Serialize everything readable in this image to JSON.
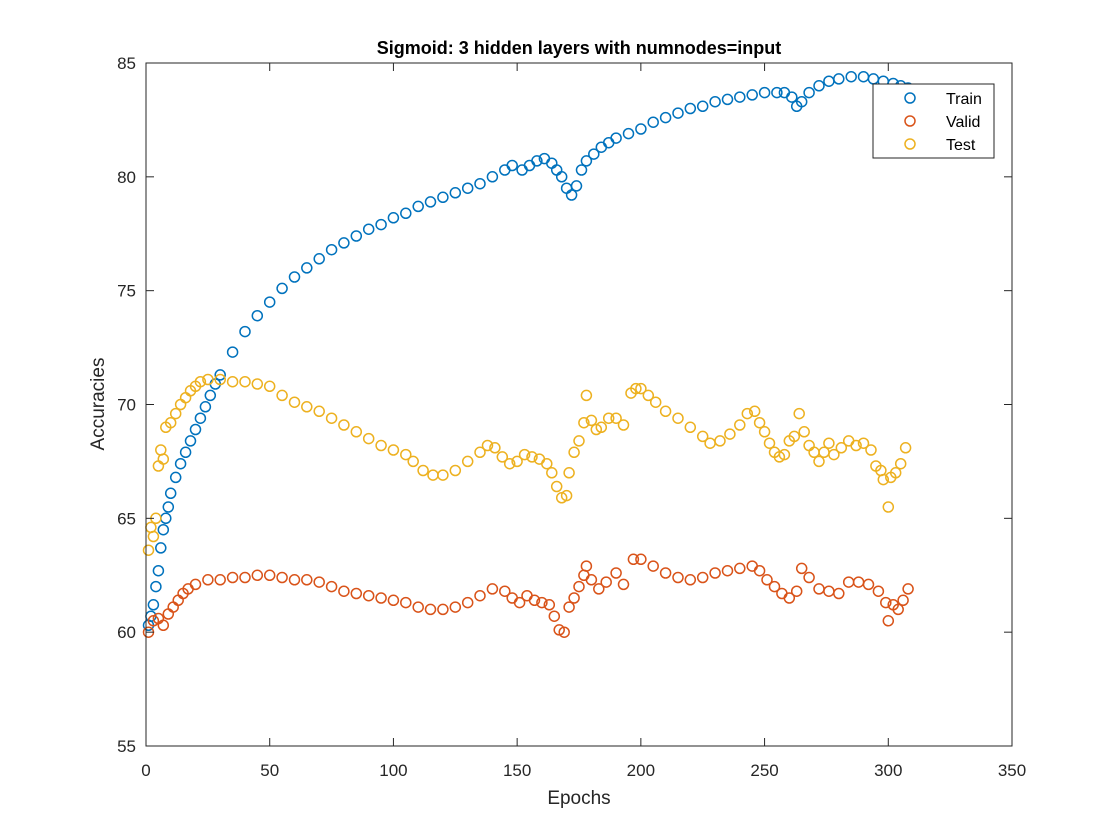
{
  "chart_data": {
    "type": "scatter",
    "title": "Sigmoid: 3 hidden layers with numnodes=input",
    "xlabel": "Epochs",
    "ylabel": "Accuracies",
    "xlim": [
      0,
      350
    ],
    "ylim": [
      55,
      85
    ],
    "xticks": [
      0,
      50,
      100,
      150,
      200,
      250,
      300,
      350
    ],
    "yticks": [
      55,
      60,
      65,
      70,
      75,
      80,
      85
    ],
    "grid": false,
    "legend_position": "top-right",
    "marker": "open-circle",
    "series": [
      {
        "name": "Train",
        "color": "#0072BD",
        "points": [
          [
            1,
            60.3
          ],
          [
            2,
            60.7
          ],
          [
            3,
            61.2
          ],
          [
            4,
            62.0
          ],
          [
            5,
            62.7
          ],
          [
            6,
            63.7
          ],
          [
            7,
            64.5
          ],
          [
            8,
            65.0
          ],
          [
            9,
            65.5
          ],
          [
            10,
            66.1
          ],
          [
            12,
            66.8
          ],
          [
            14,
            67.4
          ],
          [
            16,
            67.9
          ],
          [
            18,
            68.4
          ],
          [
            20,
            68.9
          ],
          [
            22,
            69.4
          ],
          [
            24,
            69.9
          ],
          [
            26,
            70.4
          ],
          [
            28,
            70.9
          ],
          [
            30,
            71.3
          ],
          [
            35,
            72.3
          ],
          [
            40,
            73.2
          ],
          [
            45,
            73.9
          ],
          [
            50,
            74.5
          ],
          [
            55,
            75.1
          ],
          [
            60,
            75.6
          ],
          [
            65,
            76.0
          ],
          [
            70,
            76.4
          ],
          [
            75,
            76.8
          ],
          [
            80,
            77.1
          ],
          [
            85,
            77.4
          ],
          [
            90,
            77.7
          ],
          [
            95,
            77.9
          ],
          [
            100,
            78.2
          ],
          [
            105,
            78.4
          ],
          [
            110,
            78.7
          ],
          [
            115,
            78.9
          ],
          [
            120,
            79.1
          ],
          [
            125,
            79.3
          ],
          [
            130,
            79.5
          ],
          [
            135,
            79.7
          ],
          [
            140,
            80.0
          ],
          [
            145,
            80.3
          ],
          [
            148,
            80.5
          ],
          [
            152,
            80.3
          ],
          [
            155,
            80.5
          ],
          [
            158,
            80.7
          ],
          [
            161,
            80.8
          ],
          [
            164,
            80.6
          ],
          [
            166,
            80.3
          ],
          [
            168,
            80.0
          ],
          [
            170,
            79.5
          ],
          [
            172,
            79.2
          ],
          [
            174,
            79.6
          ],
          [
            176,
            80.3
          ],
          [
            178,
            80.7
          ],
          [
            181,
            81.0
          ],
          [
            184,
            81.3
          ],
          [
            187,
            81.5
          ],
          [
            190,
            81.7
          ],
          [
            195,
            81.9
          ],
          [
            200,
            82.1
          ],
          [
            205,
            82.4
          ],
          [
            210,
            82.6
          ],
          [
            215,
            82.8
          ],
          [
            220,
            83.0
          ],
          [
            225,
            83.1
          ],
          [
            230,
            83.3
          ],
          [
            235,
            83.4
          ],
          [
            240,
            83.5
          ],
          [
            245,
            83.6
          ],
          [
            250,
            83.7
          ],
          [
            255,
            83.7
          ],
          [
            258,
            83.7
          ],
          [
            261,
            83.5
          ],
          [
            263,
            83.1
          ],
          [
            265,
            83.3
          ],
          [
            268,
            83.7
          ],
          [
            272,
            84.0
          ],
          [
            276,
            84.2
          ],
          [
            280,
            84.3
          ],
          [
            285,
            84.4
          ],
          [
            290,
            84.4
          ],
          [
            294,
            84.3
          ],
          [
            298,
            84.2
          ],
          [
            302,
            84.1
          ],
          [
            305,
            84.0
          ],
          [
            308,
            83.9
          ]
        ]
      },
      {
        "name": "Valid",
        "color": "#D95319",
        "points": [
          [
            1,
            60.0
          ],
          [
            3,
            60.5
          ],
          [
            5,
            60.6
          ],
          [
            7,
            60.3
          ],
          [
            9,
            60.8
          ],
          [
            11,
            61.1
          ],
          [
            13,
            61.4
          ],
          [
            15,
            61.7
          ],
          [
            17,
            61.9
          ],
          [
            20,
            62.1
          ],
          [
            25,
            62.3
          ],
          [
            30,
            62.3
          ],
          [
            35,
            62.4
          ],
          [
            40,
            62.4
          ],
          [
            45,
            62.5
          ],
          [
            50,
            62.5
          ],
          [
            55,
            62.4
          ],
          [
            60,
            62.3
          ],
          [
            65,
            62.3
          ],
          [
            70,
            62.2
          ],
          [
            75,
            62.0
          ],
          [
            80,
            61.8
          ],
          [
            85,
            61.7
          ],
          [
            90,
            61.6
          ],
          [
            95,
            61.5
          ],
          [
            100,
            61.4
          ],
          [
            105,
            61.3
          ],
          [
            110,
            61.1
          ],
          [
            115,
            61.0
          ],
          [
            120,
            61.0
          ],
          [
            125,
            61.1
          ],
          [
            130,
            61.3
          ],
          [
            135,
            61.6
          ],
          [
            140,
            61.9
          ],
          [
            145,
            61.8
          ],
          [
            148,
            61.5
          ],
          [
            151,
            61.3
          ],
          [
            154,
            61.6
          ],
          [
            157,
            61.4
          ],
          [
            160,
            61.3
          ],
          [
            163,
            61.2
          ],
          [
            165,
            60.7
          ],
          [
            167,
            60.1
          ],
          [
            169,
            60.0
          ],
          [
            171,
            61.1
          ],
          [
            173,
            61.5
          ],
          [
            175,
            62.0
          ],
          [
            177,
            62.5
          ],
          [
            178,
            62.9
          ],
          [
            180,
            62.3
          ],
          [
            183,
            61.9
          ],
          [
            186,
            62.2
          ],
          [
            190,
            62.6
          ],
          [
            193,
            62.1
          ],
          [
            197,
            63.2
          ],
          [
            200,
            63.2
          ],
          [
            205,
            62.9
          ],
          [
            210,
            62.6
          ],
          [
            215,
            62.4
          ],
          [
            220,
            62.3
          ],
          [
            225,
            62.4
          ],
          [
            230,
            62.6
          ],
          [
            235,
            62.7
          ],
          [
            240,
            62.8
          ],
          [
            245,
            62.9
          ],
          [
            248,
            62.7
          ],
          [
            251,
            62.3
          ],
          [
            254,
            62.0
          ],
          [
            257,
            61.7
          ],
          [
            260,
            61.5
          ],
          [
            263,
            61.8
          ],
          [
            265,
            62.8
          ],
          [
            268,
            62.4
          ],
          [
            272,
            61.9
          ],
          [
            276,
            61.8
          ],
          [
            280,
            61.7
          ],
          [
            284,
            62.2
          ],
          [
            288,
            62.2
          ],
          [
            292,
            62.1
          ],
          [
            296,
            61.8
          ],
          [
            299,
            61.3
          ],
          [
            300,
            60.5
          ],
          [
            302,
            61.2
          ],
          [
            304,
            61.0
          ],
          [
            306,
            61.4
          ],
          [
            308,
            61.9
          ]
        ]
      },
      {
        "name": "Test",
        "color": "#EDB120",
        "points": [
          [
            1,
            63.6
          ],
          [
            2,
            64.6
          ],
          [
            3,
            64.2
          ],
          [
            4,
            65.0
          ],
          [
            5,
            67.3
          ],
          [
            6,
            68.0
          ],
          [
            7,
            67.6
          ],
          [
            8,
            69.0
          ],
          [
            10,
            69.2
          ],
          [
            12,
            69.6
          ],
          [
            14,
            70.0
          ],
          [
            16,
            70.3
          ],
          [
            18,
            70.6
          ],
          [
            20,
            70.8
          ],
          [
            22,
            71.0
          ],
          [
            25,
            71.1
          ],
          [
            30,
            71.1
          ],
          [
            35,
            71.0
          ],
          [
            40,
            71.0
          ],
          [
            45,
            70.9
          ],
          [
            50,
            70.8
          ],
          [
            55,
            70.4
          ],
          [
            60,
            70.1
          ],
          [
            65,
            69.9
          ],
          [
            70,
            69.7
          ],
          [
            75,
            69.4
          ],
          [
            80,
            69.1
          ],
          [
            85,
            68.8
          ],
          [
            90,
            68.5
          ],
          [
            95,
            68.2
          ],
          [
            100,
            68.0
          ],
          [
            105,
            67.8
          ],
          [
            108,
            67.5
          ],
          [
            112,
            67.1
          ],
          [
            116,
            66.9
          ],
          [
            120,
            66.9
          ],
          [
            125,
            67.1
          ],
          [
            130,
            67.5
          ],
          [
            135,
            67.9
          ],
          [
            138,
            68.2
          ],
          [
            141,
            68.1
          ],
          [
            144,
            67.7
          ],
          [
            147,
            67.4
          ],
          [
            150,
            67.5
          ],
          [
            153,
            67.8
          ],
          [
            156,
            67.7
          ],
          [
            159,
            67.6
          ],
          [
            162,
            67.4
          ],
          [
            164,
            67.0
          ],
          [
            166,
            66.4
          ],
          [
            168,
            65.9
          ],
          [
            170,
            66.0
          ],
          [
            171,
            67.0
          ],
          [
            173,
            67.9
          ],
          [
            175,
            68.4
          ],
          [
            177,
            69.2
          ],
          [
            178,
            70.4
          ],
          [
            180,
            69.3
          ],
          [
            182,
            68.9
          ],
          [
            184,
            69.0
          ],
          [
            187,
            69.4
          ],
          [
            190,
            69.4
          ],
          [
            193,
            69.1
          ],
          [
            196,
            70.5
          ],
          [
            198,
            70.7
          ],
          [
            200,
            70.7
          ],
          [
            203,
            70.4
          ],
          [
            206,
            70.1
          ],
          [
            210,
            69.7
          ],
          [
            215,
            69.4
          ],
          [
            220,
            69.0
          ],
          [
            225,
            68.6
          ],
          [
            228,
            68.3
          ],
          [
            232,
            68.4
          ],
          [
            236,
            68.7
          ],
          [
            240,
            69.1
          ],
          [
            243,
            69.6
          ],
          [
            246,
            69.7
          ],
          [
            248,
            69.2
          ],
          [
            250,
            68.8
          ],
          [
            252,
            68.3
          ],
          [
            254,
            67.9
          ],
          [
            256,
            67.7
          ],
          [
            258,
            67.8
          ],
          [
            260,
            68.4
          ],
          [
            262,
            68.6
          ],
          [
            264,
            69.6
          ],
          [
            266,
            68.8
          ],
          [
            268,
            68.2
          ],
          [
            270,
            67.9
          ],
          [
            272,
            67.5
          ],
          [
            274,
            67.9
          ],
          [
            276,
            68.3
          ],
          [
            278,
            67.8
          ],
          [
            281,
            68.1
          ],
          [
            284,
            68.4
          ],
          [
            287,
            68.2
          ],
          [
            290,
            68.3
          ],
          [
            293,
            68.0
          ],
          [
            295,
            67.3
          ],
          [
            297,
            67.1
          ],
          [
            298,
            66.7
          ],
          [
            300,
            65.5
          ],
          [
            301,
            66.8
          ],
          [
            303,
            67.0
          ],
          [
            305,
            67.4
          ],
          [
            307,
            68.1
          ]
        ]
      }
    ]
  }
}
